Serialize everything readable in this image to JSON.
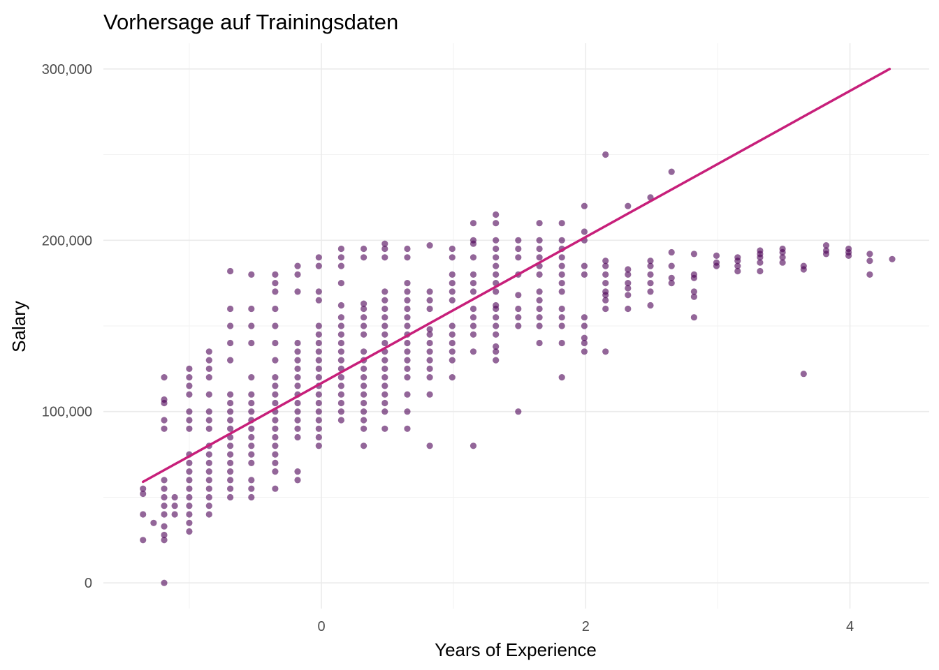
{
  "chart_data": {
    "type": "scatter",
    "title": "Vorhersage auf Trainingsdaten",
    "xlabel": "Years of Experience",
    "ylabel": "Salary",
    "xlim": [
      -1.65,
      4.6
    ],
    "ylim": [
      -15000,
      315000
    ],
    "x_ticks": [
      0,
      2,
      4
    ],
    "x_tick_labels": [
      "0",
      "2",
      "4"
    ],
    "y_ticks": [
      0,
      100000,
      200000,
      300000
    ],
    "y_tick_labels": [
      "0",
      "100,000",
      "200,000",
      "300,000"
    ],
    "grid": true,
    "legend": "none",
    "point_color": "#4b0055",
    "line_color": "#c71f7a",
    "fit_line": {
      "x": [
        -1.35,
        4.3
      ],
      "y": [
        59000,
        300000
      ]
    },
    "points": [
      [
        -1.35,
        25000
      ],
      [
        -1.35,
        40000
      ],
      [
        -1.35,
        52000
      ],
      [
        -1.35,
        55000
      ],
      [
        -1.27,
        35000
      ],
      [
        -1.19,
        0
      ],
      [
        -1.19,
        25000
      ],
      [
        -1.19,
        28000
      ],
      [
        -1.19,
        33000
      ],
      [
        -1.19,
        40000
      ],
      [
        -1.19,
        45000
      ],
      [
        -1.19,
        50000
      ],
      [
        -1.19,
        55000
      ],
      [
        -1.19,
        60000
      ],
      [
        -1.19,
        90000
      ],
      [
        -1.19,
        95000
      ],
      [
        -1.19,
        105000
      ],
      [
        -1.19,
        107000
      ],
      [
        -1.19,
        120000
      ],
      [
        -1.11,
        40000
      ],
      [
        -1.11,
        45000
      ],
      [
        -1.11,
        50000
      ],
      [
        -1.0,
        30000
      ],
      [
        -1.0,
        35000
      ],
      [
        -1.0,
        40000
      ],
      [
        -1.0,
        45000
      ],
      [
        -1.0,
        50000
      ],
      [
        -1.0,
        55000
      ],
      [
        -1.0,
        60000
      ],
      [
        -1.0,
        65000
      ],
      [
        -1.0,
        70000
      ],
      [
        -1.0,
        75000
      ],
      [
        -1.0,
        90000
      ],
      [
        -1.0,
        95000
      ],
      [
        -1.0,
        100000
      ],
      [
        -1.0,
        110000
      ],
      [
        -1.0,
        115000
      ],
      [
        -1.0,
        120000
      ],
      [
        -1.0,
        125000
      ],
      [
        -0.85,
        40000
      ],
      [
        -0.85,
        45000
      ],
      [
        -0.85,
        50000
      ],
      [
        -0.85,
        55000
      ],
      [
        -0.85,
        60000
      ],
      [
        -0.85,
        65000
      ],
      [
        -0.85,
        70000
      ],
      [
        -0.85,
        75000
      ],
      [
        -0.85,
        80000
      ],
      [
        -0.85,
        90000
      ],
      [
        -0.85,
        95000
      ],
      [
        -0.85,
        100000
      ],
      [
        -0.85,
        110000
      ],
      [
        -0.85,
        120000
      ],
      [
        -0.85,
        125000
      ],
      [
        -0.85,
        130000
      ],
      [
        -0.85,
        135000
      ],
      [
        -0.69,
        50000
      ],
      [
        -0.69,
        55000
      ],
      [
        -0.69,
        60000
      ],
      [
        -0.69,
        65000
      ],
      [
        -0.69,
        70000
      ],
      [
        -0.69,
        75000
      ],
      [
        -0.69,
        80000
      ],
      [
        -0.69,
        85000
      ],
      [
        -0.69,
        90000
      ],
      [
        -0.69,
        95000
      ],
      [
        -0.69,
        100000
      ],
      [
        -0.69,
        105000
      ],
      [
        -0.69,
        110000
      ],
      [
        -0.69,
        130000
      ],
      [
        -0.69,
        140000
      ],
      [
        -0.69,
        150000
      ],
      [
        -0.69,
        160000
      ],
      [
        -0.69,
        182000
      ],
      [
        -0.53,
        50000
      ],
      [
        -0.53,
        55000
      ],
      [
        -0.53,
        60000
      ],
      [
        -0.53,
        70000
      ],
      [
        -0.53,
        75000
      ],
      [
        -0.53,
        80000
      ],
      [
        -0.53,
        85000
      ],
      [
        -0.53,
        90000
      ],
      [
        -0.53,
        95000
      ],
      [
        -0.53,
        100000
      ],
      [
        -0.53,
        105000
      ],
      [
        -0.53,
        110000
      ],
      [
        -0.53,
        120000
      ],
      [
        -0.53,
        140000
      ],
      [
        -0.53,
        150000
      ],
      [
        -0.53,
        160000
      ],
      [
        -0.53,
        180000
      ],
      [
        -0.35,
        55000
      ],
      [
        -0.35,
        65000
      ],
      [
        -0.35,
        70000
      ],
      [
        -0.35,
        75000
      ],
      [
        -0.35,
        80000
      ],
      [
        -0.35,
        85000
      ],
      [
        -0.35,
        90000
      ],
      [
        -0.35,
        95000
      ],
      [
        -0.35,
        100000
      ],
      [
        -0.35,
        105000
      ],
      [
        -0.35,
        110000
      ],
      [
        -0.35,
        115000
      ],
      [
        -0.35,
        120000
      ],
      [
        -0.35,
        130000
      ],
      [
        -0.35,
        140000
      ],
      [
        -0.35,
        150000
      ],
      [
        -0.35,
        160000
      ],
      [
        -0.35,
        170000
      ],
      [
        -0.35,
        175000
      ],
      [
        -0.35,
        180000
      ],
      [
        -0.18,
        60000
      ],
      [
        -0.18,
        65000
      ],
      [
        -0.18,
        85000
      ],
      [
        -0.18,
        90000
      ],
      [
        -0.18,
        95000
      ],
      [
        -0.18,
        100000
      ],
      [
        -0.18,
        105000
      ],
      [
        -0.18,
        110000
      ],
      [
        -0.18,
        115000
      ],
      [
        -0.18,
        120000
      ],
      [
        -0.18,
        125000
      ],
      [
        -0.18,
        130000
      ],
      [
        -0.18,
        135000
      ],
      [
        -0.18,
        140000
      ],
      [
        -0.18,
        170000
      ],
      [
        -0.18,
        180000
      ],
      [
        -0.18,
        185000
      ],
      [
        -0.02,
        80000
      ],
      [
        -0.02,
        85000
      ],
      [
        -0.02,
        90000
      ],
      [
        -0.02,
        95000
      ],
      [
        -0.02,
        100000
      ],
      [
        -0.02,
        105000
      ],
      [
        -0.02,
        110000
      ],
      [
        -0.02,
        115000
      ],
      [
        -0.02,
        120000
      ],
      [
        -0.02,
        125000
      ],
      [
        -0.02,
        130000
      ],
      [
        -0.02,
        135000
      ],
      [
        -0.02,
        140000
      ],
      [
        -0.02,
        145000
      ],
      [
        -0.02,
        150000
      ],
      [
        -0.02,
        165000
      ],
      [
        -0.02,
        170000
      ],
      [
        -0.02,
        185000
      ],
      [
        -0.02,
        190000
      ],
      [
        0.15,
        95000
      ],
      [
        0.15,
        100000
      ],
      [
        0.15,
        105000
      ],
      [
        0.15,
        110000
      ],
      [
        0.15,
        115000
      ],
      [
        0.15,
        120000
      ],
      [
        0.15,
        125000
      ],
      [
        0.15,
        130000
      ],
      [
        0.15,
        135000
      ],
      [
        0.15,
        140000
      ],
      [
        0.15,
        145000
      ],
      [
        0.15,
        150000
      ],
      [
        0.15,
        155000
      ],
      [
        0.15,
        162000
      ],
      [
        0.15,
        175000
      ],
      [
        0.15,
        185000
      ],
      [
        0.15,
        190000
      ],
      [
        0.15,
        195000
      ],
      [
        0.32,
        80000
      ],
      [
        0.32,
        90000
      ],
      [
        0.32,
        95000
      ],
      [
        0.32,
        100000
      ],
      [
        0.32,
        105000
      ],
      [
        0.32,
        110000
      ],
      [
        0.32,
        115000
      ],
      [
        0.32,
        120000
      ],
      [
        0.32,
        125000
      ],
      [
        0.32,
        130000
      ],
      [
        0.32,
        135000
      ],
      [
        0.32,
        145000
      ],
      [
        0.32,
        150000
      ],
      [
        0.32,
        155000
      ],
      [
        0.32,
        160000
      ],
      [
        0.32,
        163000
      ],
      [
        0.32,
        190000
      ],
      [
        0.32,
        195000
      ],
      [
        0.48,
        90000
      ],
      [
        0.48,
        100000
      ],
      [
        0.48,
        105000
      ],
      [
        0.48,
        110000
      ],
      [
        0.48,
        115000
      ],
      [
        0.48,
        120000
      ],
      [
        0.48,
        125000
      ],
      [
        0.48,
        130000
      ],
      [
        0.48,
        135000
      ],
      [
        0.48,
        140000
      ],
      [
        0.48,
        145000
      ],
      [
        0.48,
        150000
      ],
      [
        0.48,
        155000
      ],
      [
        0.48,
        160000
      ],
      [
        0.48,
        165000
      ],
      [
        0.48,
        170000
      ],
      [
        0.48,
        190000
      ],
      [
        0.48,
        195000
      ],
      [
        0.48,
        198000
      ],
      [
        0.65,
        90000
      ],
      [
        0.65,
        100000
      ],
      [
        0.65,
        110000
      ],
      [
        0.65,
        120000
      ],
      [
        0.65,
        125000
      ],
      [
        0.65,
        130000
      ],
      [
        0.65,
        135000
      ],
      [
        0.65,
        140000
      ],
      [
        0.65,
        145000
      ],
      [
        0.65,
        150000
      ],
      [
        0.65,
        155000
      ],
      [
        0.65,
        160000
      ],
      [
        0.65,
        165000
      ],
      [
        0.65,
        170000
      ],
      [
        0.65,
        175000
      ],
      [
        0.65,
        190000
      ],
      [
        0.65,
        195000
      ],
      [
        0.82,
        80000
      ],
      [
        0.82,
        110000
      ],
      [
        0.82,
        120000
      ],
      [
        0.82,
        125000
      ],
      [
        0.82,
        130000
      ],
      [
        0.82,
        135000
      ],
      [
        0.82,
        140000
      ],
      [
        0.82,
        145000
      ],
      [
        0.82,
        148000
      ],
      [
        0.82,
        160000
      ],
      [
        0.82,
        165000
      ],
      [
        0.82,
        170000
      ],
      [
        0.82,
        197000
      ],
      [
        0.99,
        120000
      ],
      [
        0.99,
        130000
      ],
      [
        0.99,
        135000
      ],
      [
        0.99,
        140000
      ],
      [
        0.99,
        145000
      ],
      [
        0.99,
        150000
      ],
      [
        0.99,
        165000
      ],
      [
        0.99,
        170000
      ],
      [
        0.99,
        175000
      ],
      [
        0.99,
        180000
      ],
      [
        0.99,
        190000
      ],
      [
        0.99,
        195000
      ],
      [
        1.15,
        80000
      ],
      [
        1.15,
        135000
      ],
      [
        1.15,
        145000
      ],
      [
        1.15,
        150000
      ],
      [
        1.15,
        155000
      ],
      [
        1.15,
        160000
      ],
      [
        1.15,
        170000
      ],
      [
        1.15,
        175000
      ],
      [
        1.15,
        180000
      ],
      [
        1.15,
        190000
      ],
      [
        1.15,
        198000
      ],
      [
        1.15,
        200000
      ],
      [
        1.15,
        210000
      ],
      [
        1.32,
        130000
      ],
      [
        1.32,
        135000
      ],
      [
        1.32,
        138000
      ],
      [
        1.32,
        145000
      ],
      [
        1.32,
        150000
      ],
      [
        1.32,
        155000
      ],
      [
        1.32,
        160000
      ],
      [
        1.32,
        162000
      ],
      [
        1.32,
        170000
      ],
      [
        1.32,
        175000
      ],
      [
        1.32,
        180000
      ],
      [
        1.32,
        185000
      ],
      [
        1.32,
        190000
      ],
      [
        1.32,
        195000
      ],
      [
        1.32,
        200000
      ],
      [
        1.32,
        210000
      ],
      [
        1.32,
        215000
      ],
      [
        1.49,
        100000
      ],
      [
        1.49,
        150000
      ],
      [
        1.49,
        155000
      ],
      [
        1.49,
        160000
      ],
      [
        1.49,
        168000
      ],
      [
        1.49,
        180000
      ],
      [
        1.49,
        190000
      ],
      [
        1.49,
        195000
      ],
      [
        1.49,
        200000
      ],
      [
        1.65,
        140000
      ],
      [
        1.65,
        150000
      ],
      [
        1.65,
        155000
      ],
      [
        1.65,
        160000
      ],
      [
        1.65,
        165000
      ],
      [
        1.65,
        170000
      ],
      [
        1.65,
        180000
      ],
      [
        1.65,
        185000
      ],
      [
        1.65,
        190000
      ],
      [
        1.65,
        195000
      ],
      [
        1.65,
        200000
      ],
      [
        1.65,
        210000
      ],
      [
        1.82,
        120000
      ],
      [
        1.82,
        140000
      ],
      [
        1.82,
        150000
      ],
      [
        1.82,
        155000
      ],
      [
        1.82,
        160000
      ],
      [
        1.82,
        170000
      ],
      [
        1.82,
        175000
      ],
      [
        1.82,
        180000
      ],
      [
        1.82,
        185000
      ],
      [
        1.82,
        190000
      ],
      [
        1.82,
        195000
      ],
      [
        1.82,
        200000
      ],
      [
        1.82,
        210000
      ],
      [
        1.99,
        135000
      ],
      [
        1.99,
        140000
      ],
      [
        1.99,
        143000
      ],
      [
        1.99,
        150000
      ],
      [
        1.99,
        155000
      ],
      [
        1.99,
        180000
      ],
      [
        1.99,
        185000
      ],
      [
        1.99,
        200000
      ],
      [
        1.99,
        205000
      ],
      [
        1.99,
        220000
      ],
      [
        2.15,
        135000
      ],
      [
        2.15,
        160000
      ],
      [
        2.15,
        165000
      ],
      [
        2.15,
        168000
      ],
      [
        2.15,
        170000
      ],
      [
        2.15,
        175000
      ],
      [
        2.15,
        180000
      ],
      [
        2.15,
        185000
      ],
      [
        2.15,
        188000
      ],
      [
        2.15,
        250000
      ],
      [
        2.32,
        160000
      ],
      [
        2.32,
        168000
      ],
      [
        2.32,
        172000
      ],
      [
        2.32,
        175000
      ],
      [
        2.32,
        180000
      ],
      [
        2.32,
        183000
      ],
      [
        2.32,
        220000
      ],
      [
        2.49,
        162000
      ],
      [
        2.49,
        170000
      ],
      [
        2.49,
        175000
      ],
      [
        2.49,
        180000
      ],
      [
        2.49,
        185000
      ],
      [
        2.49,
        188000
      ],
      [
        2.49,
        225000
      ],
      [
        2.65,
        175000
      ],
      [
        2.65,
        178000
      ],
      [
        2.65,
        185000
      ],
      [
        2.65,
        193000
      ],
      [
        2.65,
        240000
      ],
      [
        2.82,
        155000
      ],
      [
        2.82,
        167000
      ],
      [
        2.82,
        170000
      ],
      [
        2.82,
        178000
      ],
      [
        2.82,
        180000
      ],
      [
        2.82,
        192000
      ],
      [
        2.99,
        185000
      ],
      [
        2.99,
        187000
      ],
      [
        2.99,
        191000
      ],
      [
        3.15,
        182000
      ],
      [
        3.15,
        185000
      ],
      [
        3.15,
        188000
      ],
      [
        3.15,
        190000
      ],
      [
        3.32,
        182000
      ],
      [
        3.32,
        187000
      ],
      [
        3.32,
        190000
      ],
      [
        3.32,
        192000
      ],
      [
        3.32,
        194000
      ],
      [
        3.49,
        187000
      ],
      [
        3.49,
        190000
      ],
      [
        3.49,
        193000
      ],
      [
        3.49,
        195000
      ],
      [
        3.65,
        122000
      ],
      [
        3.65,
        183000
      ],
      [
        3.65,
        185000
      ],
      [
        3.82,
        192000
      ],
      [
        3.82,
        194000
      ],
      [
        3.82,
        197000
      ],
      [
        3.99,
        191000
      ],
      [
        3.99,
        193000
      ],
      [
        3.99,
        195000
      ],
      [
        4.15,
        180000
      ],
      [
        4.15,
        188000
      ],
      [
        4.15,
        192000
      ],
      [
        4.32,
        189000
      ]
    ]
  }
}
